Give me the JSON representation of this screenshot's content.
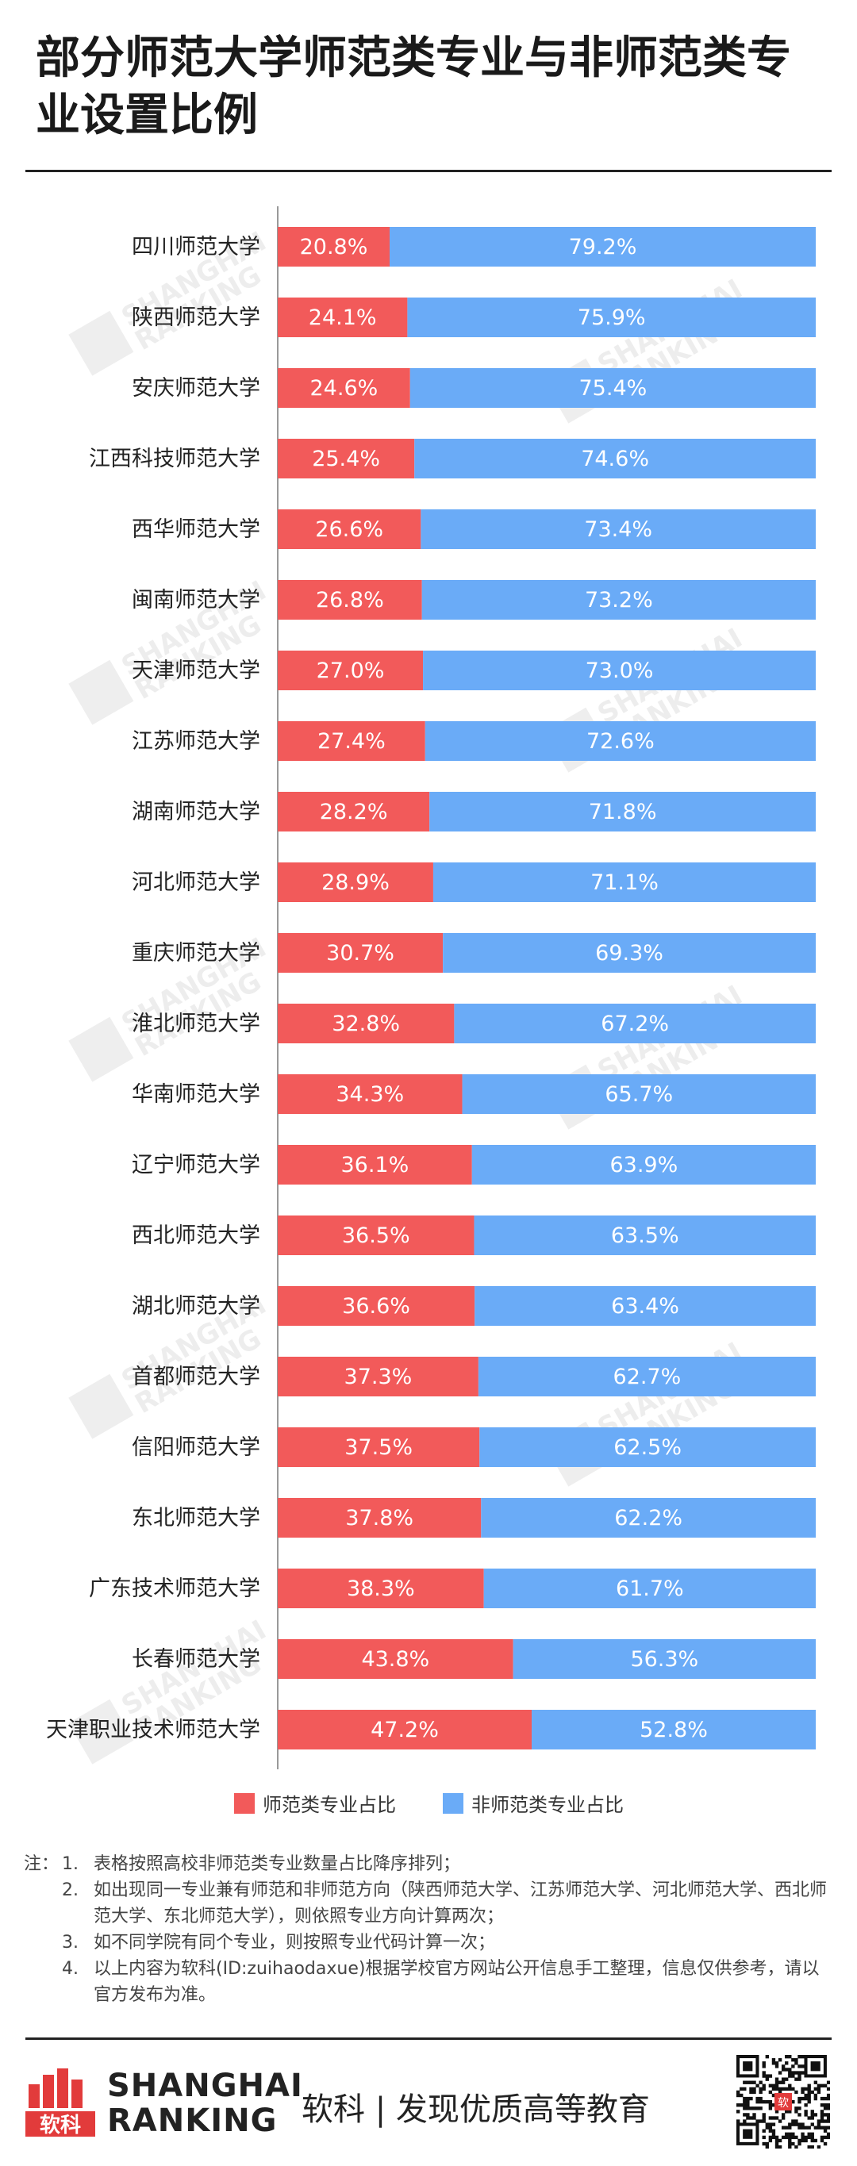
{
  "title": "部分师范大学师范类专业与非师范类专业设置比例",
  "legend": {
    "teacher_label": "师范类专业占比",
    "non_teacher_label": "非师范类专业占比"
  },
  "colors": {
    "teacher": "#f25a5a",
    "non_teacher": "#6aabf7"
  },
  "chart_data": {
    "type": "bar",
    "orientation": "horizontal",
    "stacked": true,
    "percent_stacked": true,
    "categories": [
      "四川师范大学",
      "陕西师范大学",
      "安庆师范大学",
      "江西科技师范大学",
      "西华师范大学",
      "闽南师范大学",
      "天津师范大学",
      "江苏师范大学",
      "湖南师范大学",
      "河北师范大学",
      "重庆师范大学",
      "淮北师范大学",
      "华南师范大学",
      "辽宁师范大学",
      "西北师范大学",
      "湖北师范大学",
      "首都师范大学",
      "信阳师范大学",
      "东北师范大学",
      "广东技术师范大学",
      "长春师范大学",
      "天津职业技术师范大学"
    ],
    "series": [
      {
        "name": "师范类专业占比",
        "values": [
          20.8,
          24.1,
          24.6,
          25.4,
          26.6,
          26.8,
          27.0,
          27.4,
          28.2,
          28.9,
          30.7,
          32.8,
          34.3,
          36.1,
          36.5,
          36.6,
          37.3,
          37.5,
          37.8,
          38.3,
          43.8,
          47.2
        ],
        "labels": [
          "20.8%",
          "24.1%",
          "24.6%",
          "25.4%",
          "26.6%",
          "26.8%",
          "27.0%",
          "27.4%",
          "28.2%",
          "28.9%",
          "30.7%",
          "32.8%",
          "34.3%",
          "36.1%",
          "36.5%",
          "36.6%",
          "37.3%",
          "37.5%",
          "37.8%",
          "38.3%",
          "43.8%",
          "47.2%"
        ]
      },
      {
        "name": "非师范类专业占比",
        "values": [
          79.2,
          75.9,
          75.4,
          74.6,
          73.4,
          73.2,
          73.0,
          72.6,
          71.8,
          71.1,
          69.3,
          67.2,
          65.7,
          63.9,
          63.5,
          63.4,
          62.7,
          62.5,
          62.2,
          61.7,
          56.3,
          52.8
        ],
        "labels": [
          "79.2%",
          "75.9%",
          "75.4%",
          "74.6%",
          "73.4%",
          "73.2%",
          "73.0%",
          "72.6%",
          "71.8%",
          "71.1%",
          "69.3%",
          "67.2%",
          "65.7%",
          "63.9%",
          "63.5%",
          "63.4%",
          "62.7%",
          "62.5%",
          "62.2%",
          "61.7%",
          "56.3%",
          "52.8%"
        ]
      }
    ],
    "xlim": [
      0,
      100
    ],
    "grid": false,
    "legend_position": "bottom"
  },
  "watermark": {
    "line1": "SHANGHAI",
    "line2": "RANKING"
  },
  "notes": {
    "prefix": "注：",
    "items": [
      {
        "num": "1.",
        "text": "表格按照高校非师范类专业数量占比降序排列；"
      },
      {
        "num": "2.",
        "text": "如出现同一专业兼有师范和非师范方向（陕西师范大学、江苏师范大学、河北师范大学、西北师范大学、东北师范大学），则依照专业方向计算两次；"
      },
      {
        "num": "3.",
        "text": "如不同学院有同个专业，则按照专业代码计算一次；"
      },
      {
        "num": "4.",
        "text": "以上内容为软科(ID:zuihaodaxue)根据学校官方网站公开信息手工整理，信息仅供参考，请以官方发布为准。"
      }
    ]
  },
  "footer": {
    "logo_text": "软科",
    "brand_line1": "SHANGHAI",
    "brand_line2": "RANKING",
    "slogan": "软科 | 发现优质高等教育",
    "qr_badge": "软"
  }
}
